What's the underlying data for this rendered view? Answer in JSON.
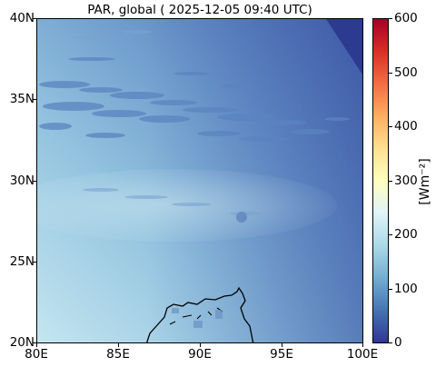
{
  "title": "PAR, global ( 2025-12-05 09:40 UTC)",
  "map": {
    "x_ticks": [
      "80E",
      "85E",
      "90E",
      "95E",
      "100E"
    ],
    "y_ticks": [
      "40N",
      "35N",
      "30N",
      "25N",
      "20N"
    ],
    "extent": {
      "lon_min": 80,
      "lon_max": 100,
      "lat_min": 20,
      "lat_max": 40
    },
    "field": "PAR",
    "gradient_colors": {
      "southwest": "#bfe3ee",
      "northeast": "#3a58a6",
      "no_data_corner": "#2c3a90"
    }
  },
  "colorbar": {
    "ticks": [
      "600",
      "500",
      "400",
      "300",
      "200",
      "100",
      "0"
    ],
    "unit_label": "[Wm⁻²]",
    "range": [
      0,
      600
    ],
    "colors": [
      "#313695",
      "#4575b4",
      "#74add1",
      "#abd9e9",
      "#e0f3f8",
      "#ffffbf",
      "#fee090",
      "#fdae61",
      "#f46d43",
      "#d73027",
      "#a50026"
    ]
  }
}
